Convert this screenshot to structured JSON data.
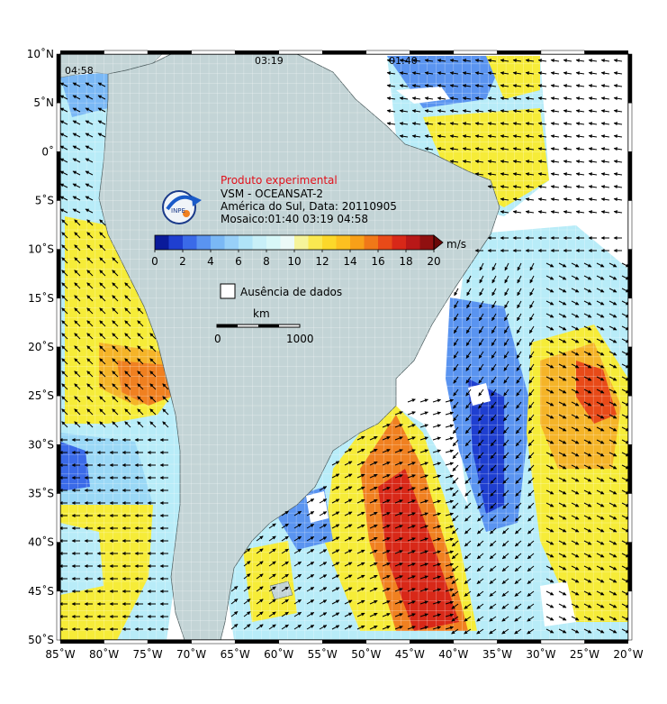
{
  "header": {
    "experimental": "Produto experimental",
    "product": "VSM - OCEANSAT-2",
    "region_date": "América do Sul, Data: 20110905",
    "mosaic": "Mosaico:01:40 03:19 04:58"
  },
  "passes": [
    "04:58",
    "03:19",
    "01:40"
  ],
  "colorbar": {
    "unit": "m/s",
    "ticks": [
      "0",
      "2",
      "4",
      "6",
      "8",
      "10",
      "12",
      "14",
      "16",
      "18",
      "20"
    ],
    "colors": [
      "#0a1a9a",
      "#1f3fd0",
      "#3a6ae8",
      "#5a94f0",
      "#7ab8f5",
      "#98d0f8",
      "#b0e4f8",
      "#c8f0f8",
      "#d8f8f8",
      "#ecfaf8",
      "#f6f49a",
      "#fae850",
      "#fcd82a",
      "#fcc020",
      "#f8a018",
      "#f07818",
      "#e84a18",
      "#d82818",
      "#b81818",
      "#901010",
      "#6a0808"
    ]
  },
  "legend": {
    "no_data": "Ausência de dados"
  },
  "scale": {
    "unit": "km",
    "start": "0",
    "end": "1000"
  },
  "lat_labels": [
    "10˚N",
    "5˚N",
    "0˚",
    "5˚S",
    "10˚S",
    "15˚S",
    "20˚S",
    "25˚S",
    "30˚S",
    "35˚S",
    "40˚S",
    "45˚S",
    "50˚S"
  ],
  "lon_labels": [
    "85˚W",
    "80˚W",
    "75˚W",
    "70˚W",
    "65˚W",
    "60˚W",
    "55˚W",
    "50˚W",
    "45˚W",
    "40˚W",
    "35˚W",
    "30˚W",
    "25˚W",
    "20˚W"
  ],
  "colors": {
    "land": "#c3d4d6",
    "no_data": "#ffffff",
    "arrow": "#000000",
    "frame": "#000000",
    "grid": "#d8e4e6",
    "red_text": "#e0101a"
  }
}
